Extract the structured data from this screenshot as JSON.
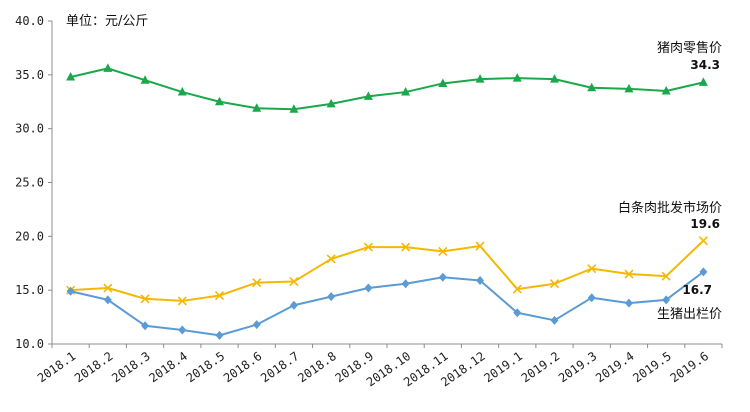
{
  "chart_data": {
    "type": "line",
    "unit_label": "单位：元/公斤",
    "ylim": [
      10,
      40
    ],
    "yticks": [
      "10.0",
      "15.0",
      "20.0",
      "25.0",
      "30.0",
      "35.0",
      "40.0"
    ],
    "categories": [
      "2018.1",
      "2018.2",
      "2018.3",
      "2018.4",
      "2018.5",
      "2018.6",
      "2018.7",
      "2018.8",
      "2018.9",
      "2018.10",
      "2018.11",
      "2018.12",
      "2019.1",
      "2019.2",
      "2019.3",
      "2019.4",
      "2019.5",
      "2019.6"
    ],
    "grid": false,
    "legend": "inline labels at right end of each series",
    "series": [
      {
        "name": "猪肉零售价",
        "color": "#1aa84a",
        "marker": "triangle",
        "end_label": "34.3",
        "values": [
          34.8,
          35.6,
          34.5,
          33.4,
          32.5,
          31.9,
          31.8,
          32.3,
          33.0,
          33.4,
          34.2,
          34.6,
          34.7,
          34.6,
          33.8,
          33.7,
          33.5,
          34.3
        ]
      },
      {
        "name": "白条肉批发市场价",
        "color": "#f5b800",
        "marker": "x",
        "end_label": "19.6",
        "values": [
          15.0,
          15.2,
          14.2,
          14.0,
          14.5,
          15.7,
          15.8,
          17.9,
          19.0,
          19.0,
          18.6,
          19.1,
          15.1,
          15.6,
          17.0,
          16.5,
          16.3,
          19.6
        ]
      },
      {
        "name": "生猪出栏价",
        "color": "#5b9bd5",
        "marker": "diamond",
        "end_label": "16.7",
        "values": [
          14.9,
          14.1,
          11.7,
          11.3,
          10.8,
          11.8,
          13.6,
          14.4,
          15.2,
          15.6,
          16.2,
          15.9,
          12.9,
          12.2,
          14.3,
          13.8,
          14.1,
          16.7
        ]
      }
    ]
  }
}
